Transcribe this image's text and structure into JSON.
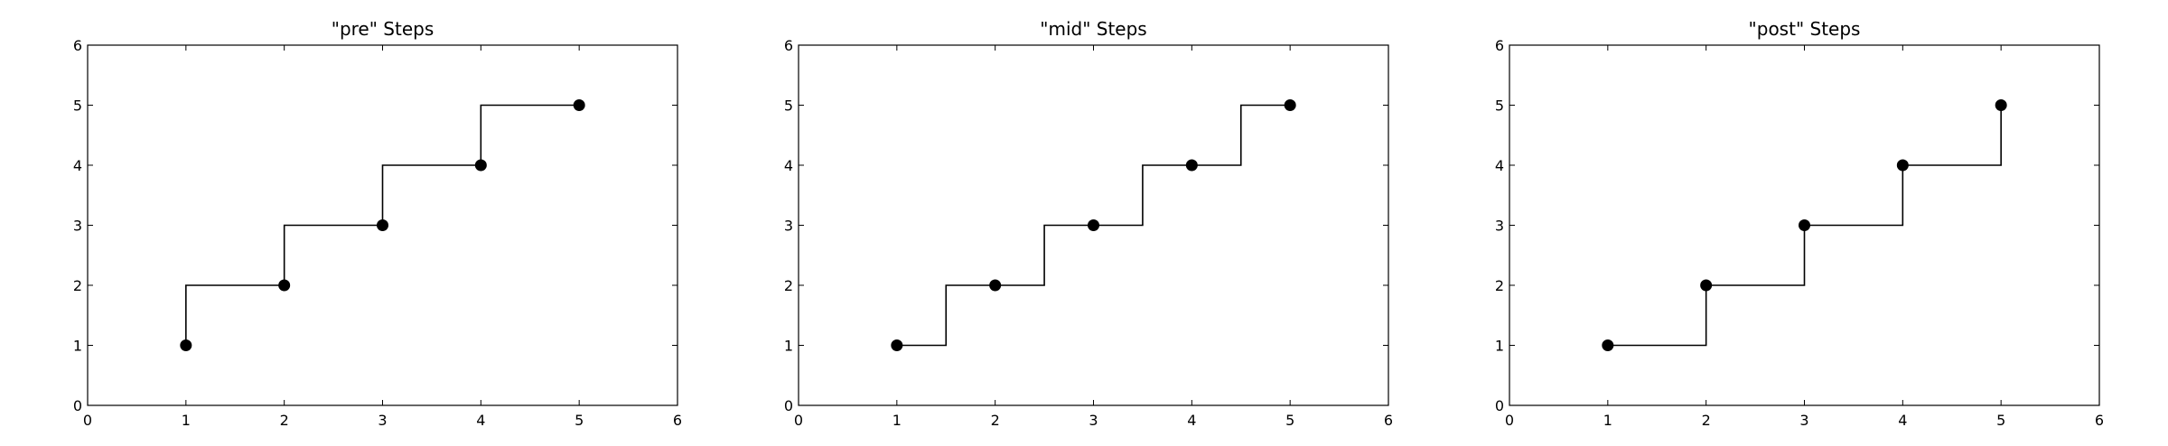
{
  "chart_data": [
    {
      "type": "line",
      "style": "step",
      "step_where": "pre",
      "title": "\"pre\" Steps",
      "xlabel": "",
      "ylabel": "",
      "x": [
        1,
        2,
        3,
        4,
        5
      ],
      "series": [
        {
          "values": [
            1,
            2,
            3,
            4,
            5
          ]
        }
      ],
      "xlim": [
        0,
        6
      ],
      "ylim": [
        0,
        6
      ],
      "xticks": [
        "0",
        "1",
        "2",
        "3",
        "4",
        "5",
        "6"
      ],
      "yticks": [
        "0",
        "1",
        "2",
        "3",
        "4",
        "5",
        "6"
      ],
      "grid": false,
      "color": "#000000"
    },
    {
      "type": "line",
      "style": "step",
      "step_where": "mid",
      "title": "\"mid\" Steps",
      "xlabel": "",
      "ylabel": "",
      "x": [
        1,
        2,
        3,
        4,
        5
      ],
      "series": [
        {
          "values": [
            1,
            2,
            3,
            4,
            5
          ]
        }
      ],
      "xlim": [
        0,
        6
      ],
      "ylim": [
        0,
        6
      ],
      "xticks": [
        "0",
        "1",
        "2",
        "3",
        "4",
        "5",
        "6"
      ],
      "yticks": [
        "0",
        "1",
        "2",
        "3",
        "4",
        "5",
        "6"
      ],
      "grid": false,
      "color": "#000000"
    },
    {
      "type": "line",
      "style": "step",
      "step_where": "post",
      "title": "\"post\" Steps",
      "xlabel": "",
      "ylabel": "",
      "x": [
        1,
        2,
        3,
        4,
        5
      ],
      "series": [
        {
          "values": [
            1,
            2,
            3,
            4,
            5
          ]
        }
      ],
      "xlim": [
        0,
        6
      ],
      "ylim": [
        0,
        6
      ],
      "xticks": [
        "0",
        "1",
        "2",
        "3",
        "4",
        "5",
        "6"
      ],
      "yticks": [
        "0",
        "1",
        "2",
        "3",
        "4",
        "5",
        "6"
      ],
      "grid": false,
      "color": "#000000"
    }
  ]
}
